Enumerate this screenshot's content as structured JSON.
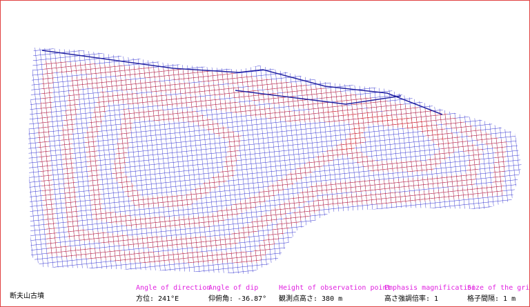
{
  "title": "断夫山古墳",
  "parameters": [
    {
      "label": "Angle of direction",
      "value": "方位:  241°E"
    },
    {
      "label": "Angle of dip",
      "value": "仰俯角: -36.87°"
    },
    {
      "label": "Height of observation point",
      "value": "観測点高さ:  380 m"
    },
    {
      "label": "Emphasis magnification",
      "value": "高さ強調倍率: 1"
    },
    {
      "label": "Size of the grid",
      "value": "格子間隔: 1 m"
    }
  ]
}
